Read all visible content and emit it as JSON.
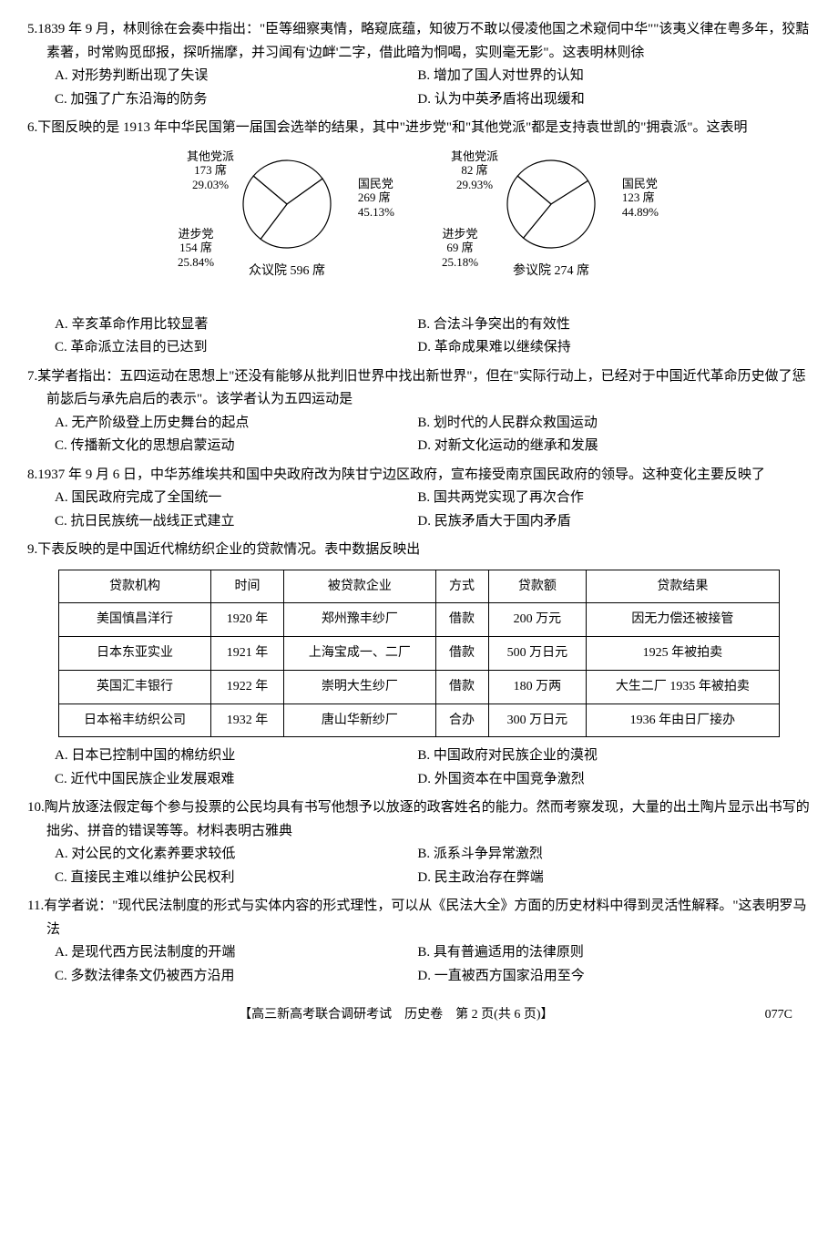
{
  "q5": {
    "num": "5.",
    "stem": "1839 年 9 月，林则徐在会奏中指出：\"臣等细察夷情，略窥底蕴，知彼万不敢以侵凌他国之术窥伺中华\"\"该夷义律在粤多年，狡黠素著，时常购觅邸报，探听揣摩，并习闻有'边衅'二字，借此暗为恫喝，实则毫无影\"。这表明林则徐",
    "a": "A. 对形势判断出现了失误",
    "b": "B. 增加了国人对世界的认知",
    "c": "C. 加强了广东沿海的防务",
    "d": "D. 认为中英矛盾将出现缓和"
  },
  "q6": {
    "num": "6.",
    "stem": "下图反映的是 1913 年中华民国第一届国会选举的结果，其中\"进步党\"和\"其他党派\"都是支持袁世凯的\"拥袁派\"。这表明",
    "chart1": {
      "title": "众议院 596 席",
      "slices": [
        {
          "label": "其他党派",
          "seats": "173 席",
          "pct": "29.03%",
          "value": 29.03,
          "color": "#ffffff"
        },
        {
          "label": "国民党",
          "seats": "269 席",
          "pct": "45.13%",
          "value": 45.13,
          "color": "#ffffff"
        },
        {
          "label": "进步党",
          "seats": "154 席",
          "pct": "25.84%",
          "value": 25.84,
          "color": "#ffffff"
        }
      ],
      "stroke": "#000000",
      "radius": 48
    },
    "chart2": {
      "title": "参议院 274 席",
      "slices": [
        {
          "label": "其他党派",
          "seats": "82 席",
          "pct": "29.93%",
          "value": 29.93,
          "color": "#ffffff"
        },
        {
          "label": "国民党",
          "seats": "123 席",
          "pct": "44.89%",
          "value": 44.89,
          "color": "#ffffff"
        },
        {
          "label": "进步党",
          "seats": "69 席",
          "pct": "25.18%",
          "value": 25.18,
          "color": "#ffffff"
        }
      ],
      "stroke": "#000000",
      "radius": 48
    },
    "a": "A. 辛亥革命作用比较显著",
    "b": "B. 合法斗争突出的有效性",
    "c": "C. 革命派立法目的已达到",
    "d": "D. 革命成果难以继续保持"
  },
  "q7": {
    "num": "7.",
    "stem": "某学者指出：五四运动在思想上\"还没有能够从批判旧世界中找出新世界\"，但在\"实际行动上，已经对于中国近代革命历史做了惩前毖后与承先启后的表示\"。该学者认为五四运动是",
    "a": "A. 无产阶级登上历史舞台的起点",
    "b": "B. 划时代的人民群众救国运动",
    "c": "C. 传播新文化的思想启蒙运动",
    "d": "D. 对新文化运动的继承和发展"
  },
  "q8": {
    "num": "8.",
    "stem": "1937 年 9 月 6 日，中华苏维埃共和国中央政府改为陕甘宁边区政府，宣布接受南京国民政府的领导。这种变化主要反映了",
    "a": "A. 国民政府完成了全国统一",
    "b": "B. 国共两党实现了再次合作",
    "c": "C. 抗日民族统一战线正式建立",
    "d": "D. 民族矛盾大于国内矛盾"
  },
  "q9": {
    "num": "9.",
    "stem": "下表反映的是中国近代棉纺织企业的贷款情况。表中数据反映出",
    "table": {
      "columns": [
        "贷款机构",
        "时间",
        "被贷款企业",
        "方式",
        "贷款额",
        "贷款结果"
      ],
      "rows": [
        [
          "美国慎昌洋行",
          "1920 年",
          "郑州豫丰纱厂",
          "借款",
          "200 万元",
          "因无力偿还被接管"
        ],
        [
          "日本东亚实业",
          "1921 年",
          "上海宝成一、二厂",
          "借款",
          "500 万日元",
          "1925 年被拍卖"
        ],
        [
          "英国汇丰银行",
          "1922 年",
          "崇明大生纱厂",
          "借款",
          "180 万两",
          "大生二厂 1935 年被拍卖"
        ],
        [
          "日本裕丰纺织公司",
          "1932 年",
          "唐山华新纱厂",
          "合办",
          "300 万日元",
          "1936 年由日厂接办"
        ]
      ]
    },
    "a": "A. 日本已控制中国的棉纺织业",
    "b": "B. 中国政府对民族企业的漠视",
    "c": "C. 近代中国民族企业发展艰难",
    "d": "D. 外国资本在中国竞争激烈"
  },
  "q10": {
    "num": "10.",
    "stem": "陶片放逐法假定每个参与投票的公民均具有书写他想予以放逐的政客姓名的能力。然而考察发现，大量的出土陶片显示出书写的拙劣、拼音的错误等等。材料表明古雅典",
    "a": "A. 对公民的文化素养要求较低",
    "b": "B. 派系斗争异常激烈",
    "c": "C. 直接民主难以维护公民权利",
    "d": "D. 民主政治存在弊端"
  },
  "q11": {
    "num": "11.",
    "stem": "有学者说：\"现代民法制度的形式与实体内容的形式理性，可以从《民法大全》方面的历史材料中得到灵活性解释。\"这表明罗马法",
    "a": "A. 是现代西方民法制度的开端",
    "b": "B. 具有普遍适用的法律原则",
    "c": "C. 多数法律条文仍被西方沿用",
    "d": "D. 一直被西方国家沿用至今"
  },
  "footer": {
    "text": "【高三新高考联合调研考试　历史卷　第 2 页(共 6 页)】",
    "code": "077C"
  }
}
